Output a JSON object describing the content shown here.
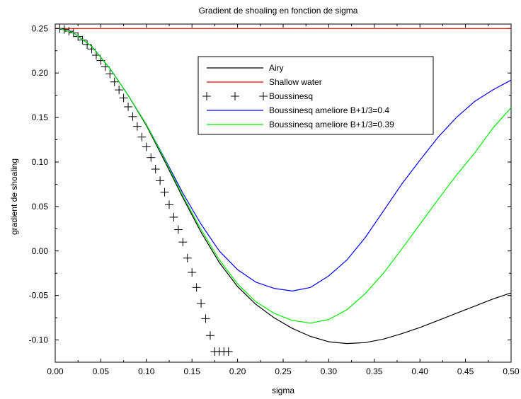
{
  "chart_data": {
    "type": "line",
    "title": "Gradient de shoaling en fonction de sigma",
    "xlabel": "sigma",
    "ylabel": "gradient de shoaling",
    "xlim": [
      0.0,
      0.5
    ],
    "ylim": [
      -0.125,
      0.255
    ],
    "x_ticks": [
      0.0,
      0.05,
      0.1,
      0.15,
      0.2,
      0.25,
      0.3,
      0.35,
      0.4,
      0.45,
      0.5
    ],
    "x_tick_labels": [
      "0.00",
      "0.05",
      "0.10",
      "0.15",
      "0.20",
      "0.25",
      "0.30",
      "0.35",
      "0.40",
      "0.45",
      "0.50"
    ],
    "y_ticks": [
      -0.1,
      -0.05,
      0.0,
      0.05,
      0.1,
      0.15,
      0.2,
      0.25
    ],
    "y_tick_labels": [
      "-0.10",
      "-0.05",
      "0.00",
      "0.05",
      "0.10",
      "0.15",
      "0.20",
      "0.25"
    ],
    "grid": false,
    "legend_position": "top-center",
    "series": [
      {
        "name": "Airy",
        "color": "#000000",
        "style": "line",
        "x": [
          0.005,
          0.02,
          0.04,
          0.06,
          0.08,
          0.1,
          0.12,
          0.14,
          0.16,
          0.18,
          0.2,
          0.22,
          0.24,
          0.26,
          0.28,
          0.3,
          0.32,
          0.34,
          0.36,
          0.38,
          0.4,
          0.42,
          0.44,
          0.46,
          0.48,
          0.5
        ],
        "y": [
          0.25,
          0.245,
          0.23,
          0.205,
          0.175,
          0.141,
          0.101,
          0.06,
          0.021,
          -0.013,
          -0.04,
          -0.06,
          -0.075,
          -0.087,
          -0.096,
          -0.102,
          -0.104,
          -0.103,
          -0.099,
          -0.093,
          -0.086,
          -0.078,
          -0.07,
          -0.062,
          -0.054,
          -0.047
        ]
      },
      {
        "name": "Shallow water",
        "color": "#ff0000",
        "style": "line",
        "x": [
          0.0,
          0.5
        ],
        "y": [
          0.25,
          0.25
        ]
      },
      {
        "name": "Boussinesq",
        "color": "#000000",
        "style": "markers",
        "marker": "plus",
        "x": [
          0.005,
          0.01,
          0.015,
          0.02,
          0.025,
          0.03,
          0.035,
          0.04,
          0.045,
          0.05,
          0.055,
          0.06,
          0.065,
          0.07,
          0.075,
          0.08,
          0.085,
          0.09,
          0.095,
          0.1,
          0.105,
          0.11,
          0.115,
          0.12,
          0.125,
          0.13,
          0.135,
          0.14,
          0.145,
          0.15,
          0.155,
          0.16,
          0.165,
          0.17,
          0.175,
          0.18,
          0.185,
          0.19
        ],
        "y": [
          0.25,
          0.249,
          0.247,
          0.245,
          0.241,
          0.237,
          0.232,
          0.227,
          0.22,
          0.214,
          0.207,
          0.199,
          0.19,
          0.181,
          0.172,
          0.162,
          0.151,
          0.14,
          0.128,
          0.117,
          0.105,
          0.092,
          0.079,
          0.066,
          0.052,
          0.038,
          0.024,
          0.01,
          -0.008,
          -0.024,
          -0.041,
          -0.059,
          -0.076,
          -0.095,
          -0.113,
          -0.113,
          -0.113,
          -0.113
        ]
      },
      {
        "name": "Boussinesq ameliore B+1/3=0.4",
        "color": "#0000ff",
        "style": "line",
        "x": [
          0.005,
          0.02,
          0.04,
          0.06,
          0.08,
          0.1,
          0.12,
          0.14,
          0.16,
          0.18,
          0.2,
          0.22,
          0.24,
          0.26,
          0.28,
          0.3,
          0.32,
          0.34,
          0.36,
          0.38,
          0.4,
          0.42,
          0.44,
          0.46,
          0.48,
          0.5
        ],
        "y": [
          0.25,
          0.245,
          0.23,
          0.205,
          0.175,
          0.142,
          0.104,
          0.065,
          0.03,
          0.0,
          -0.021,
          -0.035,
          -0.042,
          -0.045,
          -0.041,
          -0.028,
          -0.01,
          0.015,
          0.045,
          0.075,
          0.102,
          0.128,
          0.15,
          0.168,
          0.181,
          0.192
        ]
      },
      {
        "name": "Boussinesq ameliore B+1/3=0.39",
        "color": "#00ee00",
        "style": "line",
        "x": [
          0.005,
          0.02,
          0.04,
          0.06,
          0.08,
          0.1,
          0.12,
          0.14,
          0.16,
          0.18,
          0.2,
          0.22,
          0.24,
          0.26,
          0.28,
          0.3,
          0.32,
          0.34,
          0.36,
          0.38,
          0.4,
          0.42,
          0.44,
          0.46,
          0.48,
          0.5
        ],
        "y": [
          0.25,
          0.245,
          0.23,
          0.205,
          0.175,
          0.142,
          0.103,
          0.062,
          0.024,
          -0.01,
          -0.037,
          -0.057,
          -0.07,
          -0.078,
          -0.081,
          -0.077,
          -0.066,
          -0.048,
          -0.025,
          0.002,
          0.03,
          0.058,
          0.085,
          0.11,
          0.138,
          0.161
        ]
      }
    ]
  }
}
